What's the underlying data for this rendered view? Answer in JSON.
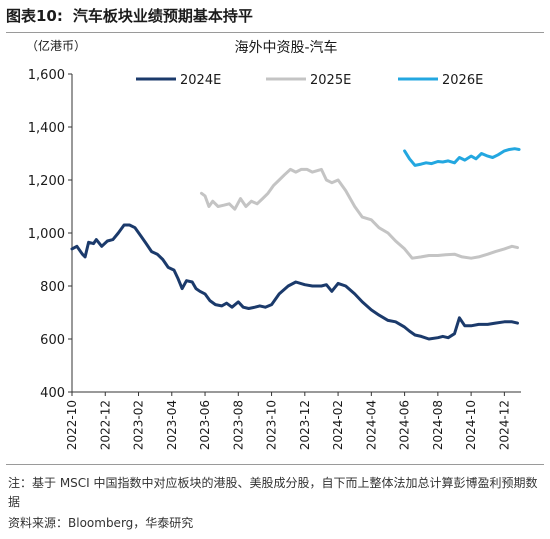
{
  "figure": {
    "label": "图表10:",
    "caption": "汽车板块业绩预期基本持平",
    "note": "注：基于 MSCI 中国指数中对应板块的港股、美股成分股，自下而上整体法加总计算彭博盈利预期数据",
    "source": "资料来源：Bloomberg，华泰研究"
  },
  "colors": {
    "series_2024E": "#1b3a6b",
    "series_2025E": "#c4c4c4",
    "series_2026E": "#23a7e0"
  },
  "chart_data": {
    "type": "line",
    "title": "海外中资股-汽车",
    "unit": "（亿港币）",
    "xlabel": "",
    "ylabel": "",
    "ylim": [
      400,
      1600
    ],
    "yticks": [
      "400",
      "600",
      "800",
      "1,000",
      "1,200",
      "1,400",
      "1,600"
    ],
    "ytick_values": [
      400,
      600,
      800,
      1000,
      1200,
      1400,
      1600
    ],
    "xlim": [
      "2022-10",
      "2025-01"
    ],
    "xticks": [
      "2022-10",
      "2022-12",
      "2023-02",
      "2023-04",
      "2023-06",
      "2023-08",
      "2023-10",
      "2023-12",
      "2024-02",
      "2024-04",
      "2024-06",
      "2024-08",
      "2024-10",
      "2024-12"
    ],
    "grid": false,
    "legend_position": "top",
    "series": [
      {
        "name": "2024E",
        "x": [
          "2022-10-01",
          "2022-10-10",
          "2022-10-20",
          "2022-10-25",
          "2022-11-01",
          "2022-11-10",
          "2022-11-15",
          "2022-11-25",
          "2022-12-05",
          "2022-12-15",
          "2022-12-25",
          "2023-01-05",
          "2023-01-15",
          "2023-01-25",
          "2023-02-05",
          "2023-02-15",
          "2023-02-25",
          "2023-03-05",
          "2023-03-15",
          "2023-03-25",
          "2023-04-05",
          "2023-04-12",
          "2023-04-20",
          "2023-04-28",
          "2023-05-08",
          "2023-05-15",
          "2023-05-22",
          "2023-06-01",
          "2023-06-10",
          "2023-06-20",
          "2023-07-01",
          "2023-07-10",
          "2023-07-20",
          "2023-08-01",
          "2023-08-10",
          "2023-08-20",
          "2023-09-01",
          "2023-09-10",
          "2023-09-20",
          "2023-10-01",
          "2023-10-15",
          "2023-11-01",
          "2023-11-15",
          "2023-12-01",
          "2023-12-15",
          "2024-01-01",
          "2024-01-10",
          "2024-01-20",
          "2024-02-01",
          "2024-02-15",
          "2024-03-01",
          "2024-03-15",
          "2024-04-01",
          "2024-04-15",
          "2024-05-01",
          "2024-05-15",
          "2024-06-01",
          "2024-06-10",
          "2024-06-20",
          "2024-07-01",
          "2024-07-15",
          "2024-08-01",
          "2024-08-10",
          "2024-08-20",
          "2024-09-01",
          "2024-09-10",
          "2024-09-20",
          "2024-10-01",
          "2024-10-15",
          "2024-11-01",
          "2024-11-15",
          "2024-12-01",
          "2024-12-15",
          "2024-12-25"
        ],
        "values": [
          940,
          950,
          920,
          910,
          965,
          960,
          975,
          950,
          970,
          975,
          1000,
          1030,
          1030,
          1020,
          990,
          960,
          930,
          920,
          900,
          870,
          860,
          830,
          790,
          820,
          815,
          790,
          780,
          770,
          745,
          730,
          725,
          735,
          720,
          740,
          720,
          715,
          720,
          725,
          720,
          730,
          770,
          800,
          815,
          805,
          800,
          800,
          805,
          780,
          810,
          800,
          770,
          740,
          710,
          690,
          670,
          665,
          645,
          630,
          615,
          610,
          600,
          605,
          610,
          605,
          620,
          680,
          650,
          650,
          655,
          655,
          660,
          665,
          665,
          660
        ]
      },
      {
        "name": "2025E",
        "x": [
          "2023-05-25",
          "2023-06-01",
          "2023-06-08",
          "2023-06-15",
          "2023-06-25",
          "2023-07-05",
          "2023-07-15",
          "2023-07-25",
          "2023-08-05",
          "2023-08-15",
          "2023-08-25",
          "2023-09-05",
          "2023-09-15",
          "2023-09-25",
          "2023-10-05",
          "2023-10-15",
          "2023-10-25",
          "2023-11-05",
          "2023-11-15",
          "2023-11-25",
          "2023-12-05",
          "2023-12-15",
          "2024-01-01",
          "2024-01-10",
          "2024-01-20",
          "2024-02-01",
          "2024-02-15",
          "2024-03-01",
          "2024-03-15",
          "2024-04-01",
          "2024-04-15",
          "2024-05-01",
          "2024-05-15",
          "2024-06-01",
          "2024-06-15",
          "2024-07-01",
          "2024-07-15",
          "2024-08-01",
          "2024-08-15",
          "2024-09-01",
          "2024-09-15",
          "2024-10-01",
          "2024-10-15",
          "2024-11-01",
          "2024-11-15",
          "2024-12-01",
          "2024-12-15",
          "2024-12-25"
        ],
        "values": [
          1150,
          1140,
          1100,
          1120,
          1100,
          1105,
          1110,
          1090,
          1130,
          1100,
          1120,
          1110,
          1130,
          1150,
          1180,
          1200,
          1220,
          1240,
          1230,
          1240,
          1240,
          1230,
          1240,
          1200,
          1190,
          1200,
          1160,
          1100,
          1060,
          1050,
          1020,
          1000,
          970,
          940,
          905,
          910,
          915,
          915,
          918,
          920,
          910,
          905,
          910,
          920,
          930,
          940,
          950,
          945
        ]
      },
      {
        "name": "2026E",
        "x": [
          "2024-06-01",
          "2024-06-10",
          "2024-06-20",
          "2024-07-01",
          "2024-07-10",
          "2024-07-20",
          "2024-08-01",
          "2024-08-10",
          "2024-08-20",
          "2024-09-01",
          "2024-09-10",
          "2024-09-20",
          "2024-10-01",
          "2024-10-10",
          "2024-10-20",
          "2024-11-01",
          "2024-11-10",
          "2024-11-20",
          "2024-12-01",
          "2024-12-10",
          "2024-12-20",
          "2024-12-28"
        ],
        "values": [
          1310,
          1280,
          1255,
          1260,
          1265,
          1262,
          1270,
          1268,
          1272,
          1265,
          1285,
          1275,
          1290,
          1280,
          1300,
          1290,
          1285,
          1295,
          1310,
          1315,
          1318,
          1315
        ]
      }
    ]
  }
}
